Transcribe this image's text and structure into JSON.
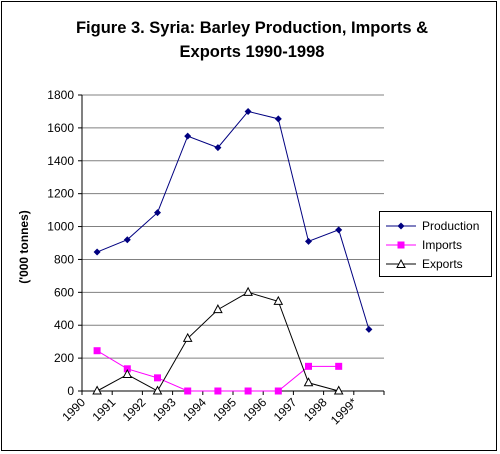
{
  "chart_data": {
    "type": "line",
    "title_line1": "Figure 3. Syria: Barley Production, Imports &",
    "title_line2": "Exports 1990-1998",
    "ylabel": "('000 tonnes)",
    "xlabel": "",
    "categories": [
      "1990",
      "1991",
      "1992",
      "1993",
      "1994",
      "1995",
      "1996",
      "1997",
      "1998",
      "1999*"
    ],
    "y_ticks": [
      "0",
      "200",
      "400",
      "600",
      "800",
      "1000",
      "1200",
      "1400",
      "1600",
      "1800"
    ],
    "ylim": [
      0,
      1800
    ],
    "grid": "horizontal",
    "legend_position": "right",
    "series": [
      {
        "name": "Production",
        "color": "#000080",
        "marker": "diamond",
        "values": [
          845,
          920,
          1085,
          1550,
          1480,
          1700,
          1655,
          910,
          980,
          375
        ]
      },
      {
        "name": "Imports",
        "color": "#FF00FF",
        "marker": "square",
        "values": [
          245,
          135,
          80,
          0,
          0,
          0,
          0,
          150,
          150,
          null
        ]
      },
      {
        "name": "Exports",
        "color": "#000000",
        "marker": "triangle",
        "values": [
          0,
          100,
          0,
          320,
          495,
          600,
          545,
          50,
          0,
          null
        ]
      }
    ]
  }
}
